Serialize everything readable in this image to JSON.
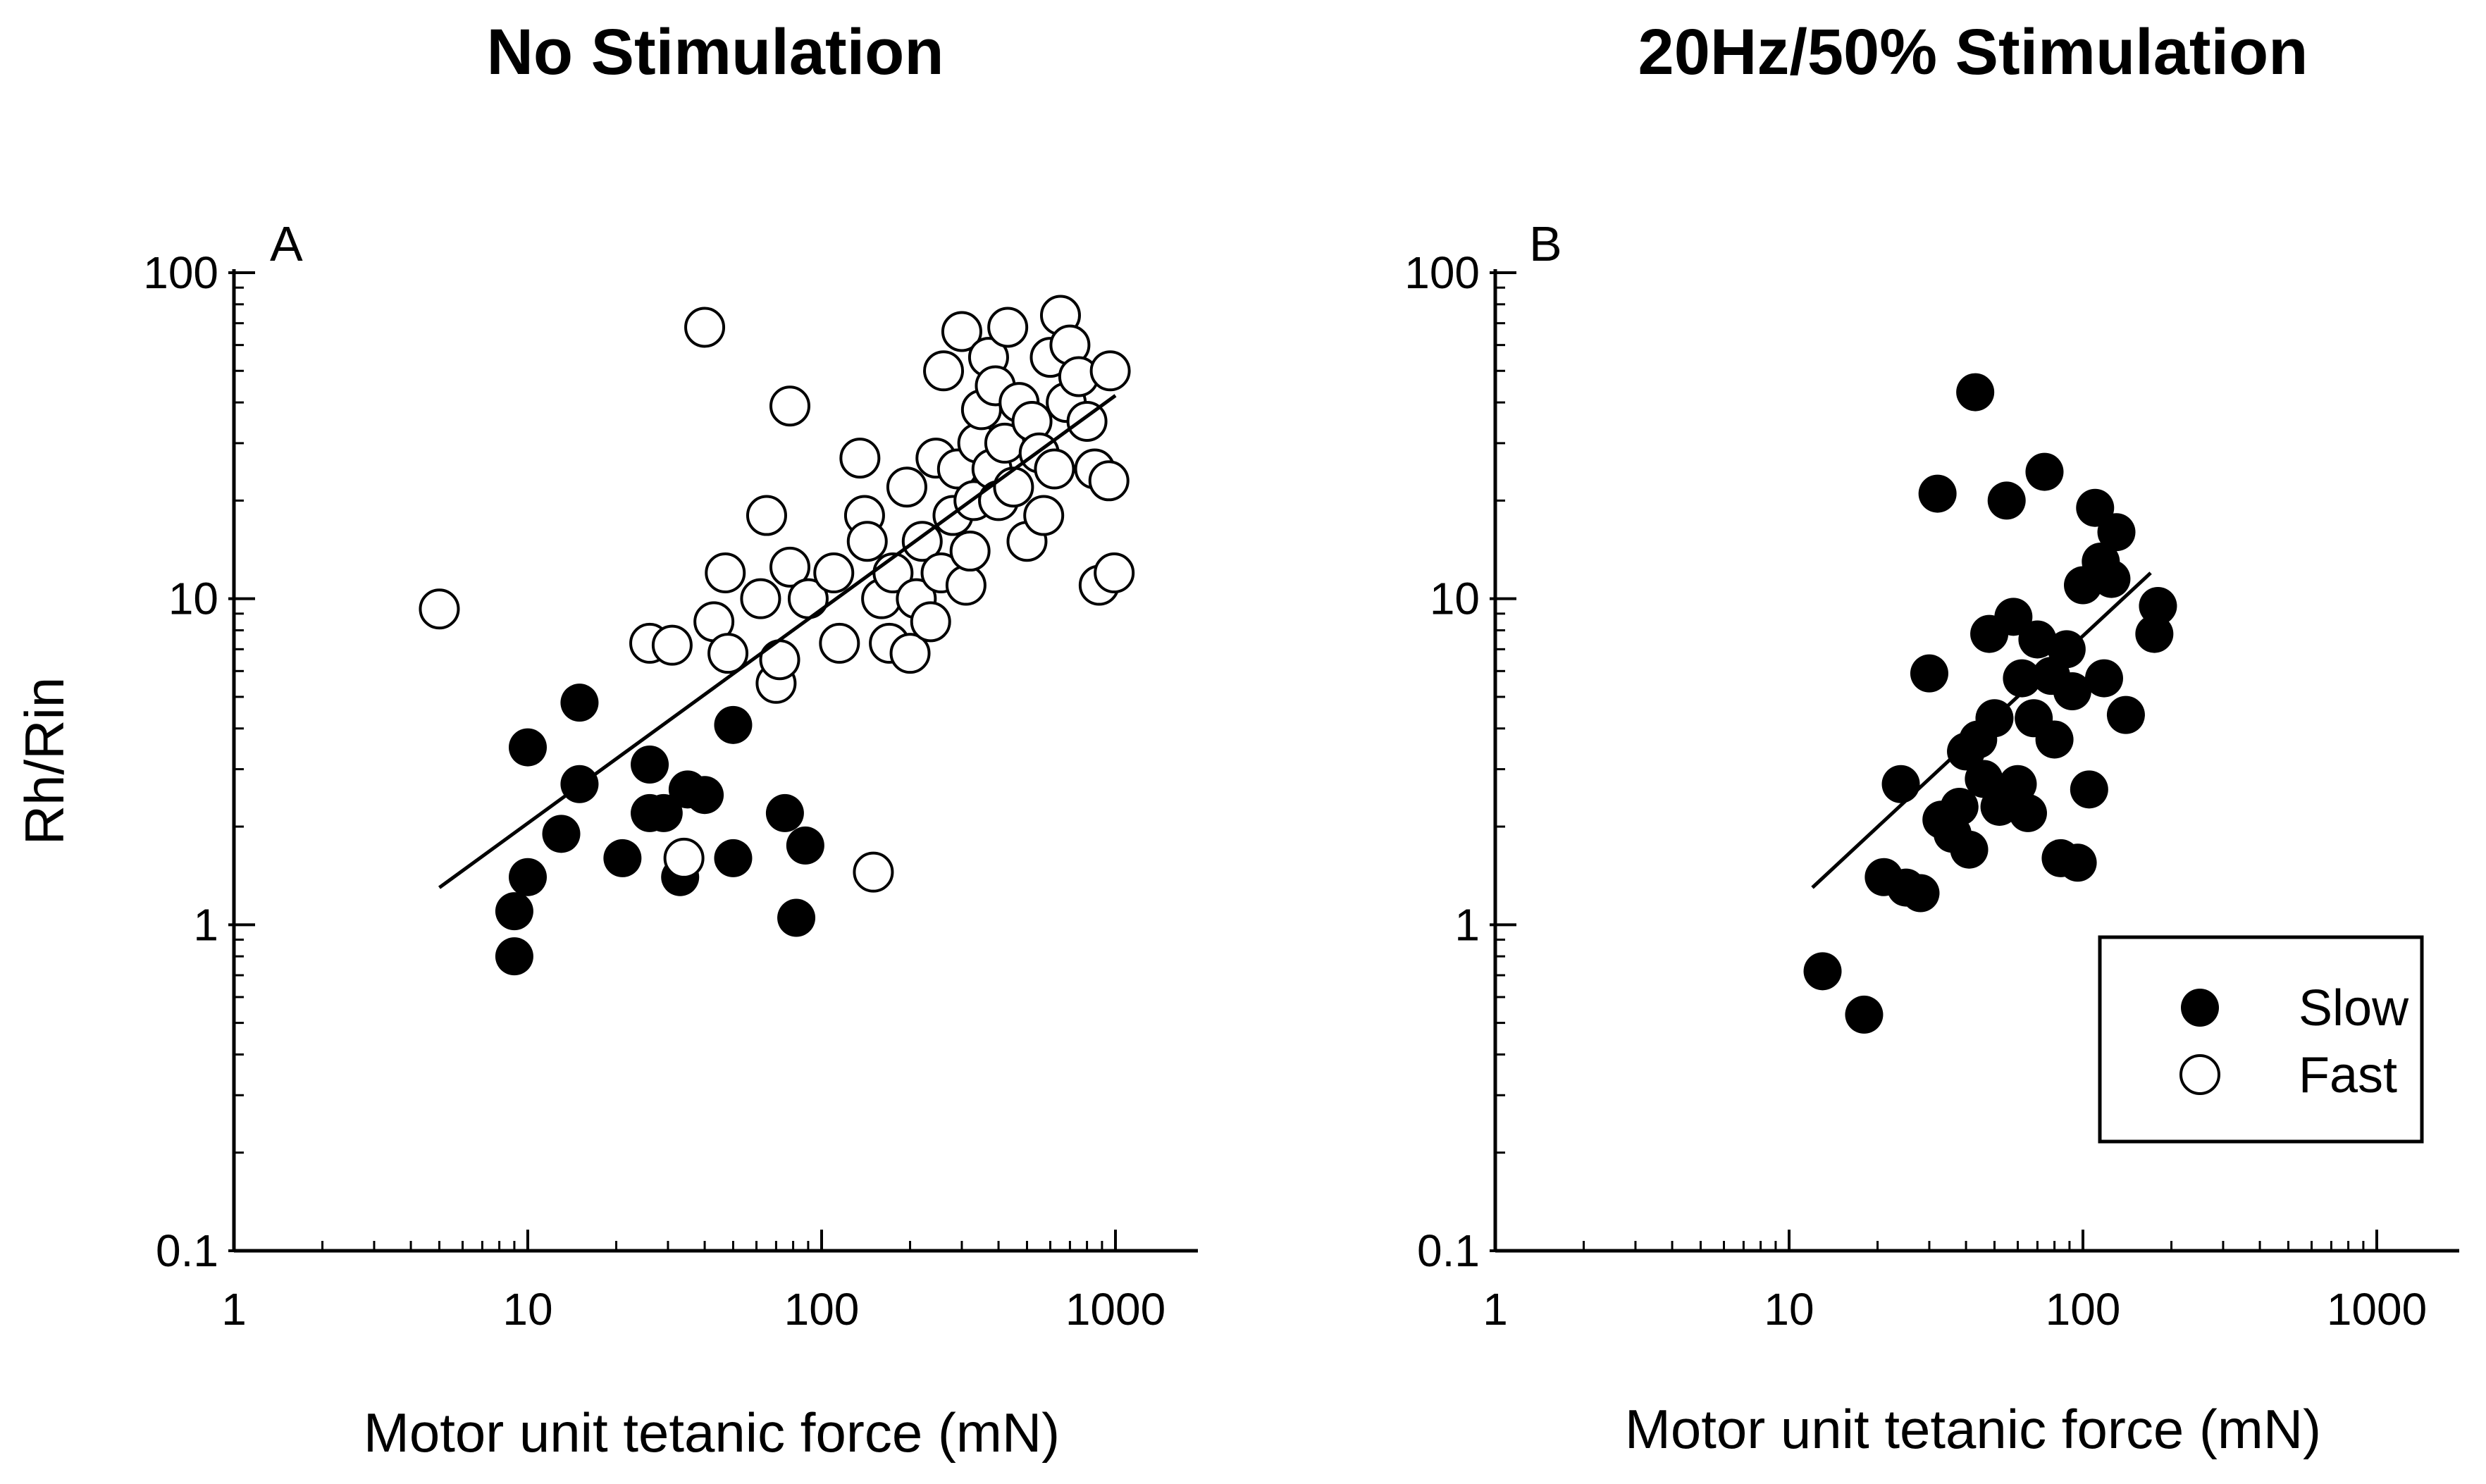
{
  "chart_data": [
    {
      "type": "scatter",
      "panel": "A",
      "title": "No Stimulation",
      "xlabel": "Motor unit tetanic force (mN)",
      "ylabel": "Rh/Rin",
      "xscale": "log",
      "yscale": "log",
      "xlim": [
        1,
        1500
      ],
      "ylim": [
        0.1,
        100
      ],
      "xticks": [
        1,
        10,
        100,
        1000
      ],
      "xtick_labels": [
        "1",
        "10",
        "100",
        "1000"
      ],
      "yticks": [
        0.1,
        1,
        10,
        100
      ],
      "ytick_labels": [
        "0.1",
        "1",
        "10",
        "100"
      ],
      "series": [
        {
          "name": "Slow",
          "marker": "filled-circle",
          "points": [
            [
              9,
              0.8
            ],
            [
              9,
              1.1
            ],
            [
              10,
              1.4
            ],
            [
              10,
              3.5
            ],
            [
              13,
              1.9
            ],
            [
              15,
              2.7
            ],
            [
              15,
              4.8
            ],
            [
              21,
              1.6
            ],
            [
              26,
              3.1
            ],
            [
              26,
              2.2
            ],
            [
              29,
              2.2
            ],
            [
              33,
              1.4
            ],
            [
              35,
              2.6
            ],
            [
              40,
              2.5
            ],
            [
              50,
              4.1
            ],
            [
              50,
              1.6
            ],
            [
              75,
              2.2
            ],
            [
              82,
              1.05
            ],
            [
              88,
              1.75
            ]
          ]
        },
        {
          "name": "Fast",
          "marker": "open-circle",
          "points": [
            [
              5,
              9.3
            ],
            [
              26,
              7.3
            ],
            [
              31,
              7.2
            ],
            [
              34,
              1.6
            ],
            [
              40,
              68
            ],
            [
              43,
              8.5
            ],
            [
              47,
              12
            ],
            [
              48,
              6.8
            ],
            [
              62,
              10
            ],
            [
              65,
              18
            ],
            [
              70,
              5.5
            ],
            [
              72,
              6.5
            ],
            [
              78,
              39
            ],
            [
              78,
              12.5
            ],
            [
              90,
              10
            ],
            [
              110,
              12
            ],
            [
              115,
              7.3
            ],
            [
              135,
              27
            ],
            [
              140,
              18
            ],
            [
              143,
              15
            ],
            [
              150,
              1.45
            ],
            [
              160,
              10
            ],
            [
              170,
              7.3
            ],
            [
              175,
              12
            ],
            [
              195,
              22
            ],
            [
              200,
              6.8
            ],
            [
              210,
              10
            ],
            [
              220,
              15
            ],
            [
              235,
              8.5
            ],
            [
              245,
              27
            ],
            [
              255,
              12
            ],
            [
              260,
              50
            ],
            [
              280,
              18
            ],
            [
              290,
              25
            ],
            [
              300,
              66
            ],
            [
              310,
              11
            ],
            [
              320,
              14
            ],
            [
              330,
              20
            ],
            [
              340,
              30
            ],
            [
              350,
              38
            ],
            [
              370,
              55
            ],
            [
              380,
              25
            ],
            [
              390,
              45
            ],
            [
              400,
              20
            ],
            [
              420,
              30
            ],
            [
              430,
              68
            ],
            [
              450,
              22
            ],
            [
              470,
              40
            ],
            [
              500,
              15
            ],
            [
              520,
              35
            ],
            [
              550,
              28
            ],
            [
              570,
              18
            ],
            [
              600,
              55
            ],
            [
              620,
              25
            ],
            [
              650,
              74
            ],
            [
              680,
              40
            ],
            [
              700,
              60
            ],
            [
              750,
              48
            ],
            [
              800,
              35
            ],
            [
              850,
              25
            ],
            [
              880,
              11
            ],
            [
              950,
              23
            ],
            [
              960,
              50
            ],
            [
              990,
              12
            ]
          ]
        }
      ],
      "regression_line": {
        "x": [
          5,
          1000
        ],
        "y": [
          1.3,
          42
        ]
      }
    },
    {
      "type": "scatter",
      "panel": "B",
      "title": "20Hz/50% Stimulation",
      "xlabel": "Motor unit tetanic force (mN)",
      "ylabel": "",
      "xscale": "log",
      "yscale": "log",
      "xlim": [
        1,
        1500
      ],
      "ylim": [
        0.1,
        100
      ],
      "xticks": [
        1,
        10,
        100,
        1000
      ],
      "xtick_labels": [
        "1",
        "10",
        "100",
        "1000"
      ],
      "yticks": [
        0.1,
        1,
        10,
        100
      ],
      "ytick_labels": [
        "0.1",
        "1",
        "10",
        "100"
      ],
      "series": [
        {
          "name": "Slow",
          "marker": "filled-circle",
          "points": [
            [
              13,
              0.72
            ],
            [
              18,
              0.53
            ],
            [
              21,
              1.4
            ],
            [
              24,
              2.7
            ],
            [
              25,
              1.3
            ],
            [
              28,
              1.25
            ],
            [
              30,
              5.9
            ],
            [
              32,
              21
            ],
            [
              33,
              2.1
            ],
            [
              36,
              1.9
            ],
            [
              38,
              2.3
            ],
            [
              40,
              3.4
            ],
            [
              41,
              1.7
            ],
            [
              43,
              43
            ],
            [
              44,
              3.7
            ],
            [
              46,
              2.8
            ],
            [
              48,
              7.8
            ],
            [
              50,
              4.3
            ],
            [
              52,
              2.3
            ],
            [
              55,
              20
            ],
            [
              58,
              8.8
            ],
            [
              60,
              2.7
            ],
            [
              62,
              5.7
            ],
            [
              65,
              2.2
            ],
            [
              68,
              4.3
            ],
            [
              70,
              7.5
            ],
            [
              74,
              24.5
            ],
            [
              78,
              5.8
            ],
            [
              80,
              3.7
            ],
            [
              84,
              1.6
            ],
            [
              88,
              7
            ],
            [
              92,
              5.2
            ],
            [
              96,
              1.55
            ],
            [
              100,
              11
            ],
            [
              105,
              2.6
            ],
            [
              110,
              19
            ],
            [
              115,
              13
            ],
            [
              118,
              5.7
            ],
            [
              125,
              11.5
            ],
            [
              130,
              16
            ],
            [
              140,
              4.4
            ],
            [
              175,
              7.8
            ],
            [
              180,
              9.5
            ]
          ]
        },
        {
          "name": "Fast",
          "marker": "open-circle",
          "points": []
        }
      ],
      "regression_line": {
        "x": [
          12,
          170
        ],
        "y": [
          1.3,
          12
        ]
      },
      "legend": {
        "position": "bottom-right",
        "entries": [
          "Slow",
          "Fast"
        ]
      }
    }
  ]
}
